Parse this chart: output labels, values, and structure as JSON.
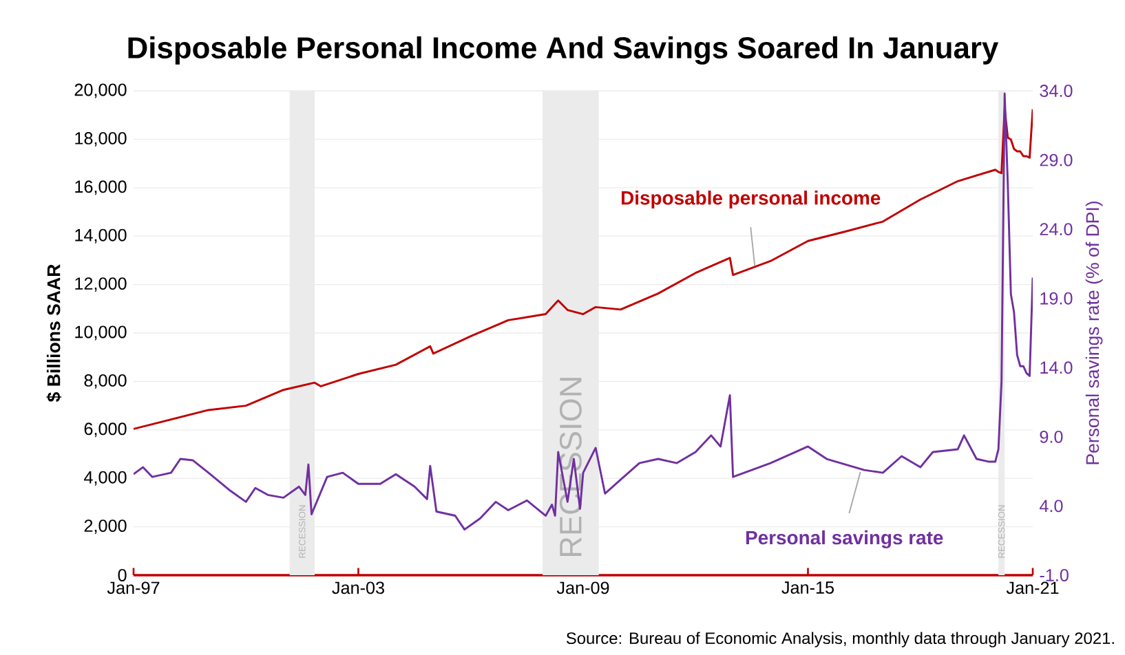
{
  "chart_data": {
    "type": "line",
    "title": "Disposable Personal Income And Savings Soared In January",
    "ylabel": "$ Billions SAAR",
    "y2label": "Personal savings rate (% of DPI)",
    "xlim": [
      "1997-01",
      "2021-01"
    ],
    "xticks": [
      {
        "value": "1997-01",
        "label": "Jan-97"
      },
      {
        "value": "2003-01",
        "label": "Jan-03"
      },
      {
        "value": "2009-01",
        "label": "Jan-09"
      },
      {
        "value": "2015-01",
        "label": "Jan-15"
      },
      {
        "value": "2021-01",
        "label": "Jan-21"
      }
    ],
    "ylim": [
      0,
      20000
    ],
    "yticks": [
      0,
      {
        "value": 2000,
        "label": "2,000"
      },
      {
        "value": 4000,
        "label": "4,000"
      },
      {
        "value": 6000,
        "label": "6,000"
      },
      {
        "value": 8000,
        "label": "8,000"
      },
      {
        "value": 10000,
        "label": "10,000"
      },
      {
        "value": 12000,
        "label": "12,000"
      },
      {
        "value": 14000,
        "label": "14,000"
      },
      {
        "value": 16000,
        "label": "16,000"
      },
      {
        "value": 18000,
        "label": "18,000"
      },
      {
        "value": 20000,
        "label": "20,000"
      }
    ],
    "y2lim": [
      -1,
      34
    ],
    "y2ticks": [
      {
        "value": -1,
        "label": "-1.0"
      },
      {
        "value": 4,
        "label": "4.0"
      },
      {
        "value": 9,
        "label": "9.0"
      },
      {
        "value": 14,
        "label": "14.0"
      },
      {
        "value": 19,
        "label": "19.0"
      },
      {
        "value": 24,
        "label": "24.0"
      },
      {
        "value": 29,
        "label": "29.0"
      },
      {
        "value": 34,
        "label": "34.0"
      }
    ],
    "grid": "y",
    "bands": [
      {
        "axis": "x",
        "from": "2001-03",
        "to": "2001-11",
        "label": "RECESSION",
        "color": "#ebebeb"
      },
      {
        "axis": "x",
        "from": "2007-12",
        "to": "2009-06",
        "label": "RECESSION",
        "color": "#ebebeb"
      },
      {
        "axis": "x",
        "from": "2020-02",
        "to": "2020-04",
        "label": "RECESSION",
        "color": "#ebebeb"
      }
    ],
    "annotations": [
      "Source: Bureau of Economic Analysis, monthly data through January 2021."
    ],
    "series": [
      {
        "name": "Disposable personal income",
        "color": "#c00000",
        "x": [
          "1997-01",
          "1999-01",
          "2000-01",
          "2001-01",
          "2001-11",
          "2002-01",
          "2003-01",
          "2004-01",
          "2004-12",
          "2005-01",
          "2006-01",
          "2007-01",
          "2008-01",
          "2008-05",
          "2008-08",
          "2009-01",
          "2009-05",
          "2010-01",
          "2011-01",
          "2012-01",
          "2012-12",
          "2013-01",
          "2014-01",
          "2015-01",
          "2016-01",
          "2017-01",
          "2018-01",
          "2019-01",
          "2020-01",
          "2020-02",
          "2020-03",
          "2020-04",
          "2020-05",
          "2020-06",
          "2020-07",
          "2020-08",
          "2020-09",
          "2020-10",
          "2020-11",
          "2020-12",
          "2021-01"
        ],
        "values": [
          6040,
          6820,
          7000,
          7650,
          7950,
          7800,
          8310,
          8690,
          9450,
          9150,
          9870,
          10530,
          10780,
          11340,
          10950,
          10780,
          11070,
          10970,
          11630,
          12480,
          13100,
          12400,
          12970,
          13800,
          14190,
          14600,
          15510,
          16270,
          16740,
          16650,
          16600,
          19300,
          18070,
          17990,
          17600,
          17500,
          17500,
          17300,
          17300,
          17240,
          19240
        ]
      },
      {
        "name": "Personal savings rate",
        "color": "#7030a0",
        "axis": "y2",
        "x": [
          "1997-01",
          "1997-04",
          "1997-07",
          "1998-01",
          "1998-04",
          "1998-08",
          "1999-01",
          "1999-08",
          "2000-01",
          "2000-04",
          "2000-08",
          "2001-01",
          "2001-06",
          "2001-08",
          "2001-09",
          "2001-10",
          "2002-03",
          "2002-08",
          "2003-01",
          "2003-08",
          "2004-01",
          "2004-07",
          "2004-11",
          "2004-12",
          "2005-02",
          "2005-08",
          "2005-11",
          "2006-04",
          "2006-09",
          "2007-01",
          "2007-07",
          "2008-01",
          "2008-03",
          "2008-04",
          "2008-05",
          "2008-08",
          "2008-10",
          "2008-12",
          "2009-01",
          "2009-05",
          "2009-08",
          "2010-01",
          "2010-07",
          "2011-01",
          "2011-07",
          "2012-01",
          "2012-06",
          "2012-09",
          "2012-12",
          "2013-01",
          "2013-07",
          "2014-01",
          "2015-01",
          "2015-07",
          "2016-07",
          "2017-01",
          "2017-07",
          "2018-01",
          "2018-05",
          "2019-01",
          "2019-03",
          "2019-07",
          "2019-11",
          "2020-01",
          "2020-02",
          "2020-03",
          "2020-04",
          "2020-05",
          "2020-06",
          "2020-07",
          "2020-08",
          "2020-09",
          "2020-10",
          "2020-11",
          "2020-12",
          "2021-01"
        ],
        "values": [
          6.3,
          6.8,
          6.1,
          6.4,
          7.4,
          7.3,
          6.4,
          5.1,
          4.3,
          5.3,
          4.8,
          4.6,
          5.4,
          4.8,
          7.0,
          3.4,
          6.1,
          6.4,
          5.6,
          5.6,
          6.3,
          5.4,
          4.5,
          6.9,
          3.6,
          3.3,
          2.3,
          3.1,
          4.3,
          3.7,
          4.4,
          3.3,
          4.1,
          3.3,
          7.9,
          4.3,
          7.4,
          3.8,
          6.4,
          8.2,
          4.9,
          5.9,
          7.1,
          7.4,
          7.1,
          7.9,
          9.1,
          8.3,
          12.0,
          6.1,
          6.6,
          7.1,
          8.3,
          7.4,
          6.6,
          6.4,
          7.6,
          6.8,
          7.9,
          8.1,
          9.1,
          7.4,
          7.2,
          7.2,
          8.1,
          13.0,
          33.8,
          27.3,
          19.3,
          18.0,
          14.9,
          14.1,
          14.1,
          13.6,
          13.4,
          20.5
        ]
      }
    ]
  }
}
